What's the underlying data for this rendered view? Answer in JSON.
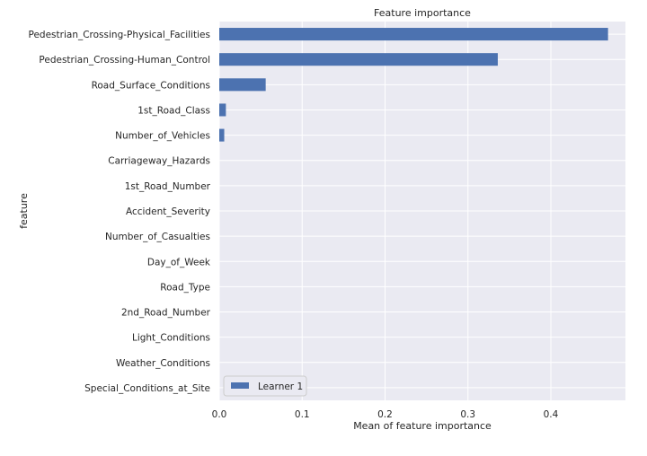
{
  "chart_data": {
    "type": "bar",
    "orientation": "horizontal",
    "title": "Feature importance",
    "xlabel": "Mean of feature importance",
    "ylabel": "feature",
    "xlim": [
      0,
      0.49
    ],
    "xticks": [
      0.0,
      0.1,
      0.2,
      0.3,
      0.4
    ],
    "xtick_labels": [
      "0.0",
      "0.1",
      "0.2",
      "0.3",
      "0.4"
    ],
    "grid": true,
    "legend_position": "lower-left",
    "categories": [
      "Pedestrian_Crossing-Physical_Facilities",
      "Pedestrian_Crossing-Human_Control",
      "Road_Surface_Conditions",
      "1st_Road_Class",
      "Number_of_Vehicles",
      "Carriageway_Hazards",
      "1st_Road_Number",
      "Accident_Severity",
      "Number_of_Casualties",
      "Day_of_Week",
      "Road_Type",
      "2nd_Road_Number",
      "Light_Conditions",
      "Weather_Conditions",
      "Special_Conditions_at_Site"
    ],
    "series": [
      {
        "name": "Learner 1",
        "color": "#4c72b0",
        "values": [
          0.469,
          0.336,
          0.056,
          0.008,
          0.006,
          0.0,
          0.0,
          0.0,
          0.0,
          0.0,
          0.0,
          0.0,
          0.0,
          0.0,
          0.0
        ]
      }
    ],
    "colors": {
      "plot_background": "#eaeaf2",
      "grid": "#ffffff",
      "bar": "#4c72b0"
    }
  }
}
